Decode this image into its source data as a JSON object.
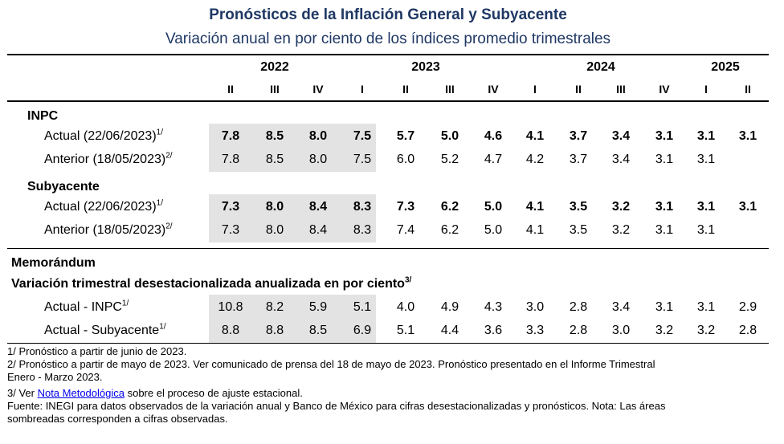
{
  "title": "Pronósticos de la Inflación General y Subyacente",
  "subtitle": "Variación anual en por ciento de los índices promedio trimestrales",
  "years": [
    "2022",
    "2023",
    "2024",
    "2025"
  ],
  "quarters": [
    "II",
    "III",
    "IV",
    "I",
    "II",
    "III",
    "IV",
    "I",
    "II",
    "III",
    "IV",
    "I",
    "II"
  ],
  "sections": {
    "inpc": "INPC",
    "subyacente": "Subyacente",
    "memorandum": "Memorándum",
    "variacion": "Variación trimestral desestacionalizada anualizada en por ciento",
    "variacion_sup": "3/"
  },
  "rows": [
    {
      "label": "Actual (22/06/2023)",
      "sup": "1/",
      "bold": true,
      "values": [
        "7.8",
        "8.5",
        "8.0",
        "7.5",
        "5.7",
        "5.0",
        "4.6",
        "4.1",
        "3.7",
        "3.4",
        "3.1",
        "3.1",
        "3.1"
      ]
    },
    {
      "label": "Anterior (18/05/2023)",
      "sup": "2/",
      "bold": false,
      "values": [
        "7.8",
        "8.5",
        "8.0",
        "7.5",
        "6.0",
        "5.2",
        "4.7",
        "4.2",
        "3.7",
        "3.4",
        "3.1",
        "3.1",
        ""
      ]
    },
    {
      "label": "Actual (22/06/2023)",
      "sup": "1/",
      "bold": true,
      "values": [
        "7.3",
        "8.0",
        "8.4",
        "8.3",
        "7.3",
        "6.2",
        "5.0",
        "4.1",
        "3.5",
        "3.2",
        "3.1",
        "3.1",
        "3.1"
      ]
    },
    {
      "label": "Anterior (18/05/2023)",
      "sup": "2/",
      "bold": false,
      "values": [
        "7.3",
        "8.0",
        "8.4",
        "8.3",
        "7.4",
        "6.2",
        "5.0",
        "4.1",
        "3.5",
        "3.2",
        "3.1",
        "3.1",
        ""
      ]
    },
    {
      "label": "Actual - INPC",
      "sup": "1/",
      "bold": false,
      "values": [
        "10.8",
        "8.2",
        "5.9",
        "5.1",
        "4.0",
        "4.9",
        "4.3",
        "3.0",
        "2.8",
        "3.4",
        "3.1",
        "3.1",
        "2.9"
      ]
    },
    {
      "label": "Actual - Subyacente",
      "sup": "1/",
      "bold": false,
      "values": [
        "8.8",
        "8.8",
        "8.5",
        "6.9",
        "5.1",
        "4.4",
        "3.6",
        "3.3",
        "2.8",
        "3.0",
        "3.2",
        "3.2",
        "2.8"
      ]
    }
  ],
  "notes": {
    "n1": "1/ Pronóstico a partir de junio de 2023.",
    "n2a": "2/ Pronóstico a partir de mayo de 2023. Ver comunicado de prensa del 18 de mayo de 2023. Pronóstico presentado en el Informe Trimestral",
    "n2b": "Enero - Marzo 2023.",
    "n3_pre": "3/ Ver ",
    "n3_link": "Nota Metodológica",
    "n3_post": " sobre el proceso de ajuste estacional.",
    "f1": "Fuente: INEGI para datos observados de la variación anual y Banco de México para cifras desestacionalizadas y pronósticos. Nota: Las áreas",
    "f2": "sombreadas corresponden a cifras observadas."
  }
}
